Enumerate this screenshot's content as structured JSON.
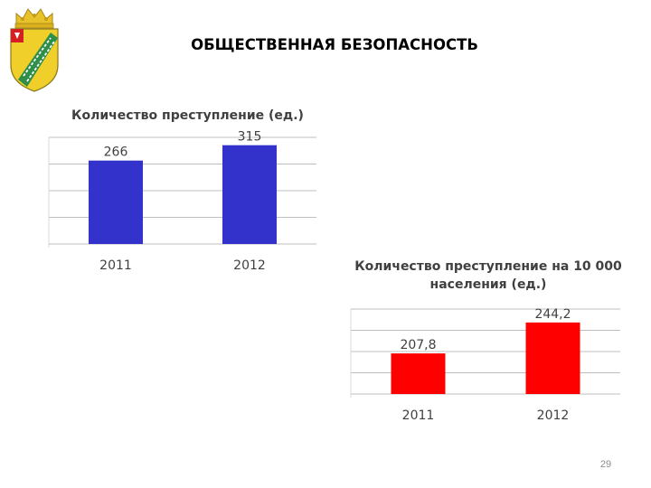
{
  "slide": {
    "title": "ОБЩЕСТВЕННАЯ БЕЗОПАСНОСТЬ",
    "page_number": "29",
    "emblem": "municipal-coat-of-arms"
  },
  "chart_data": [
    {
      "type": "bar",
      "title": "Количество преступление (ед.)",
      "categories": [
        "2011",
        "2012"
      ],
      "values": [
        266,
        315
      ],
      "value_labels": [
        "266",
        "315"
      ],
      "ylim": [
        0,
        340
      ],
      "grid": true,
      "color": "#3333cc"
    },
    {
      "type": "bar",
      "title": "Количество преступление  на 10 000 населения (ед.)",
      "categories": [
        "2011",
        "2012"
      ],
      "values": [
        207.8,
        244.2
      ],
      "value_labels": [
        "207,8",
        "244,2"
      ],
      "ylim": [
        160,
        260
      ],
      "grid": true,
      "color": "#ff0000"
    }
  ]
}
